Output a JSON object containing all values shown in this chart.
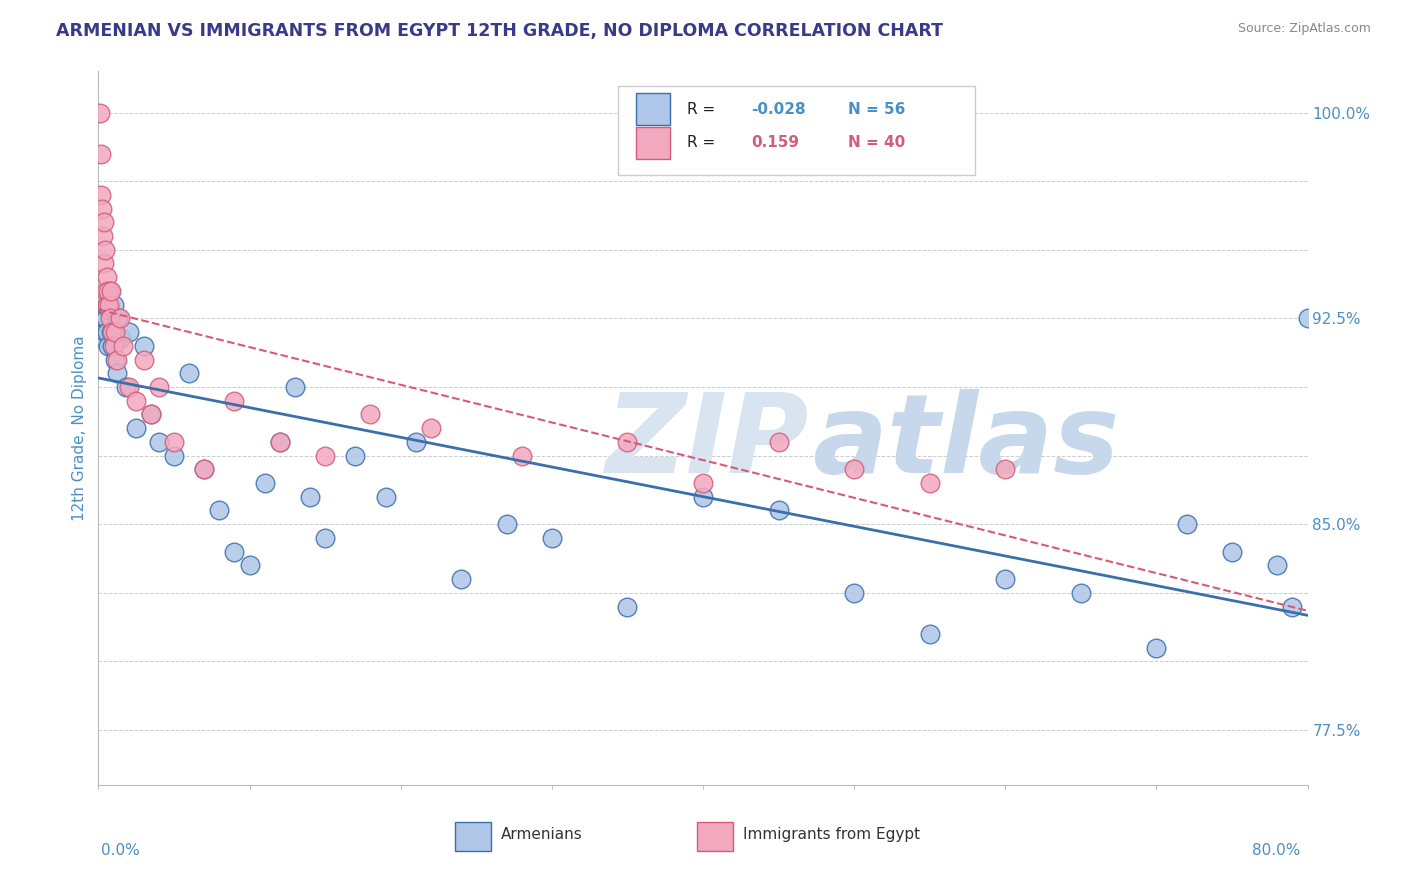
{
  "title": "ARMENIAN VS IMMIGRANTS FROM EGYPT 12TH GRADE, NO DIPLOMA CORRELATION CHART",
  "source": "Source: ZipAtlas.com",
  "ylabel": "12th Grade, No Diploma",
  "xmin": 0.0,
  "xmax": 80.0,
  "ymin": 75.5,
  "ymax": 101.5,
  "r_armenian": -0.028,
  "n_armenian": 56,
  "r_egypt": 0.159,
  "n_egypt": 40,
  "armenian_color": "#aec6e8",
  "egypt_color": "#f2a8be",
  "armenian_line_color": "#3a6faa",
  "egypt_line_color": "#d45c7a",
  "title_color": "#3a3a8a",
  "axis_label_color": "#4a90c4",
  "watermark_zip_color": "#d8e4f0",
  "watermark_atlas_color": "#c8d8ec",
  "ytick_vals": [
    77.5,
    80.0,
    82.5,
    85.0,
    87.5,
    90.0,
    92.5,
    95.0,
    97.5,
    100.0
  ],
  "ytick_show": [
    77.5,
    85.0,
    92.5,
    100.0
  ],
  "armenian_x": [
    0.15,
    0.2,
    0.25,
    0.3,
    0.35,
    0.4,
    0.45,
    0.5,
    0.55,
    0.6,
    0.65,
    0.7,
    0.75,
    0.8,
    0.9,
    1.0,
    1.1,
    1.2,
    1.3,
    1.5,
    1.8,
    2.0,
    2.5,
    3.0,
    3.5,
    4.0,
    5.0,
    6.0,
    7.0,
    8.0,
    9.0,
    10.0,
    11.0,
    12.0,
    13.0,
    14.0,
    15.0,
    17.0,
    19.0,
    21.0,
    24.0,
    27.0,
    30.0,
    35.0,
    40.0,
    45.0,
    50.0,
    55.0,
    60.0,
    65.0,
    70.0,
    72.0,
    75.0,
    78.0,
    79.0,
    80.0
  ],
  "armenian_y": [
    92.5,
    93.0,
    92.8,
    93.2,
    92.5,
    91.8,
    92.0,
    92.5,
    93.0,
    92.0,
    91.5,
    92.8,
    93.5,
    92.0,
    91.5,
    93.0,
    91.0,
    90.5,
    92.5,
    91.8,
    90.0,
    92.0,
    88.5,
    91.5,
    89.0,
    88.0,
    87.5,
    90.5,
    87.0,
    85.5,
    84.0,
    83.5,
    86.5,
    88.0,
    90.0,
    86.0,
    84.5,
    87.5,
    86.0,
    88.0,
    83.0,
    85.0,
    84.5,
    82.0,
    86.0,
    85.5,
    82.5,
    81.0,
    83.0,
    82.5,
    80.5,
    85.0,
    84.0,
    83.5,
    82.0,
    92.5
  ],
  "egypt_x": [
    0.1,
    0.15,
    0.2,
    0.25,
    0.3,
    0.35,
    0.4,
    0.45,
    0.5,
    0.55,
    0.6,
    0.65,
    0.7,
    0.75,
    0.8,
    0.9,
    1.0,
    1.1,
    1.2,
    1.4,
    1.6,
    2.0,
    2.5,
    3.0,
    3.5,
    4.0,
    5.0,
    7.0,
    9.0,
    12.0,
    15.0,
    18.0,
    22.0,
    28.0,
    35.0,
    40.0,
    45.0,
    50.0,
    55.0,
    60.0
  ],
  "egypt_y": [
    100.0,
    98.5,
    97.0,
    96.5,
    95.5,
    96.0,
    94.5,
    95.0,
    93.5,
    94.0,
    93.0,
    93.5,
    93.0,
    92.5,
    93.5,
    92.0,
    91.5,
    92.0,
    91.0,
    92.5,
    91.5,
    90.0,
    89.5,
    91.0,
    89.0,
    90.0,
    88.0,
    87.0,
    89.5,
    88.0,
    87.5,
    89.0,
    88.5,
    87.5,
    88.0,
    86.5,
    88.0,
    87.0,
    86.5,
    87.0
  ]
}
